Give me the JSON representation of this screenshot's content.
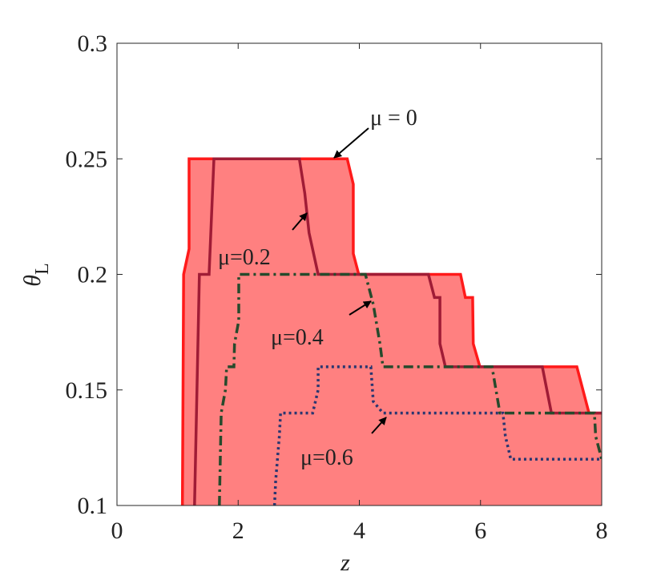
{
  "chart_data": {
    "type": "line",
    "x_label": "z",
    "y_label": "θ",
    "y_label_subscript": "L",
    "xlim": [
      0,
      8
    ],
    "ylim": [
      0.1,
      0.3
    ],
    "xticks": [
      0,
      2,
      4,
      6,
      8
    ],
    "yticks": [
      0.1,
      0.15,
      0.2,
      0.25,
      0.3
    ],
    "fill_color": "#ff8080",
    "series": [
      {
        "name": "μ = 0",
        "color": "#ff1a1a",
        "line_style": "solid",
        "x": [
          1.08,
          1.1,
          1.19,
          1.19,
          3.8,
          3.9,
          3.9,
          3.99,
          5.67,
          5.75,
          5.87,
          5.88,
          5.99,
          7.59,
          7.79,
          8.0
        ],
        "y": [
          0.1,
          0.2,
          0.211,
          0.25,
          0.25,
          0.239,
          0.209,
          0.2,
          0.2,
          0.19,
          0.19,
          0.17,
          0.16,
          0.16,
          0.14,
          0.14
        ]
      },
      {
        "name": "μ=0.2",
        "color": "#a01c36",
        "line_style": "solid",
        "x": [
          1.28,
          1.36,
          1.52,
          1.6,
          3.01,
          3.1,
          3.17,
          3.32,
          5.14,
          5.24,
          5.33,
          5.33,
          5.42,
          7.02,
          7.17,
          8.0
        ],
        "y": [
          0.1,
          0.2,
          0.2,
          0.25,
          0.25,
          0.235,
          0.218,
          0.2,
          0.2,
          0.19,
          0.19,
          0.17,
          0.16,
          0.16,
          0.14,
          0.14
        ]
      },
      {
        "name": "μ=0.4",
        "color": "#264a2c",
        "line_style": "dash-dot",
        "x": [
          1.69,
          1.72,
          1.79,
          1.81,
          1.93,
          1.94,
          2.01,
          2.01,
          4.1,
          4.23,
          4.34,
          4.39,
          6.19,
          6.32,
          7.88,
          7.9,
          8.0
        ],
        "y": [
          0.1,
          0.14,
          0.15,
          0.16,
          0.16,
          0.17,
          0.18,
          0.2,
          0.2,
          0.187,
          0.17,
          0.16,
          0.16,
          0.14,
          0.14,
          0.13,
          0.12
        ]
      },
      {
        "name": "μ=0.6",
        "color": "#2a3670",
        "line_style": "dotted",
        "x": [
          2.6,
          2.62,
          2.68,
          2.7,
          3.23,
          3.32,
          3.32,
          4.19,
          4.23,
          4.39,
          6.37,
          6.41,
          6.5,
          8.0
        ],
        "y": [
          0.1,
          0.111,
          0.13,
          0.14,
          0.14,
          0.15,
          0.16,
          0.16,
          0.145,
          0.14,
          0.14,
          0.13,
          0.12,
          0.12
        ]
      }
    ]
  }
}
